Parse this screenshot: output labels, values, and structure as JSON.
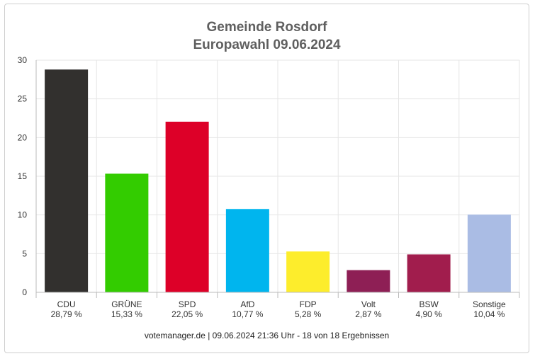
{
  "chart_data": {
    "type": "bar",
    "title": "Gemeinde Rosdorf",
    "subtitle": "Europawahl 09.06.2024",
    "categories": [
      "CDU",
      "GRÜNE",
      "SPD",
      "AfD",
      "FDP",
      "Volt",
      "BSW",
      "Sonstige"
    ],
    "value_labels": [
      "28,79 %",
      "15,33 %",
      "22,05 %",
      "10,77 %",
      "5,28 %",
      "2,87 %",
      "4,90 %",
      "10,04 %"
    ],
    "values": [
      28.79,
      15.33,
      22.05,
      10.77,
      5.28,
      2.87,
      4.9,
      10.04
    ],
    "colors": [
      "#32302e",
      "#33cc00",
      "#dd0028",
      "#00b5ee",
      "#fded2c",
      "#8e1f55",
      "#a11d4d",
      "#aabce4"
    ],
    "ylim": [
      0,
      30
    ],
    "yticks": [
      0,
      5,
      10,
      15,
      20,
      25,
      30
    ],
    "grid": true,
    "legend": "none"
  },
  "footer": "votemanager.de | 09.06.2024 21:36 Uhr - 18 von 18 Ergebnissen"
}
